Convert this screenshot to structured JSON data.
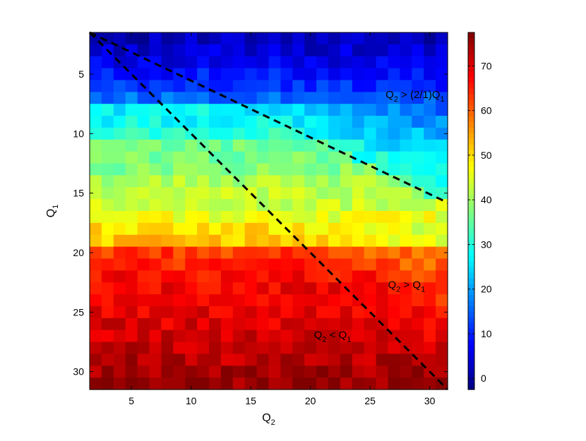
{
  "chart_data": {
    "type": "heatmap",
    "x": {
      "label": "Q",
      "label_sub": "2",
      "range": [
        1.5,
        31.5
      ],
      "ticks": [
        5,
        10,
        15,
        20,
        25,
        30
      ]
    },
    "y": {
      "label": "Q",
      "label_sub": "1",
      "range": [
        1.5,
        31.5
      ],
      "reversed": true,
      "ticks": [
        5,
        10,
        15,
        20,
        25,
        30
      ]
    },
    "colorbar": {
      "colormap": "jet",
      "range": [
        -2.5,
        77.5
      ],
      "ticks": [
        0,
        10,
        20,
        30,
        40,
        50,
        60,
        70
      ]
    },
    "grid": false,
    "value_model": {
      "description": "approximate cell values by row (Q1) with gradient over Q2",
      "row_values_at_q2_min": [
        [
          2,
          2
        ],
        [
          3,
          4
        ],
        [
          4,
          6
        ],
        [
          5,
          9
        ],
        [
          6,
          11
        ],
        [
          7,
          16
        ],
        [
          8,
          27
        ],
        [
          9,
          28
        ],
        [
          10,
          31
        ],
        [
          11,
          36
        ],
        [
          12,
          37
        ],
        [
          13,
          38
        ],
        [
          14,
          41
        ],
        [
          15,
          42
        ],
        [
          16,
          43
        ],
        [
          17,
          46
        ],
        [
          18,
          50
        ],
        [
          19,
          52
        ],
        [
          20,
          63
        ],
        [
          21,
          65
        ],
        [
          22,
          67
        ],
        [
          23,
          68
        ],
        [
          24,
          68
        ],
        [
          25,
          69
        ],
        [
          26,
          70
        ],
        [
          27,
          71
        ],
        [
          28,
          72
        ],
        [
          29,
          73
        ],
        [
          30,
          75
        ],
        [
          31,
          76
        ]
      ]
    },
    "boundaries": [
      {
        "name": "q2-gt-2q1",
        "from": [
          1.5,
          1.5
        ],
        "to": [
          31.5,
          15.8
        ],
        "style": "dashed"
      },
      {
        "name": "q2-eq-q1",
        "from": [
          1.5,
          1.5
        ],
        "to": [
          31.5,
          31.5
        ],
        "style": "dashed"
      }
    ],
    "annotations": [
      {
        "id": "upper",
        "text_main": "Q",
        "sub1": "2",
        "text_mid": " > (2/1)Q",
        "sub2": "1",
        "x": 26.3,
        "y": 7.0
      },
      {
        "id": "middle",
        "text_main": "Q",
        "sub1": "2",
        "text_mid": " > Q",
        "sub2": "1",
        "x": 26.5,
        "y": 23.0
      },
      {
        "id": "lower",
        "text_main": "Q",
        "sub1": "2",
        "text_mid": " < Q",
        "sub2": "1",
        "x": 20.3,
        "y": 27.2
      }
    ]
  }
}
